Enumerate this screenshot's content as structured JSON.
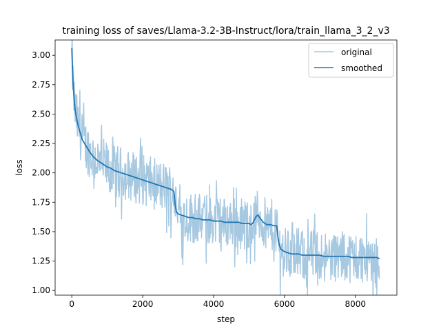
{
  "chart_data": {
    "type": "line",
    "title": "training loss of saves/Llama-3.2-3B-Instruct/lora/train_llama_3_2_v3",
    "xlabel": "step",
    "ylabel": "loss",
    "xlim": [
      -470,
      9170
    ],
    "ylim": [
      0.96,
      3.13
    ],
    "xticks": [
      0,
      2000,
      4000,
      6000,
      8000
    ],
    "xtick_labels": [
      "0",
      "2000",
      "4000",
      "6000",
      "8000"
    ],
    "yticks": [
      1.0,
      1.25,
      1.5,
      1.75,
      2.0,
      2.25,
      2.5,
      2.75,
      3.0
    ],
    "ytick_labels": [
      "1.00",
      "1.25",
      "1.50",
      "1.75",
      "2.00",
      "2.25",
      "2.50",
      "2.75",
      "3.00"
    ],
    "grid": false,
    "legend_position": "top-right",
    "smoothed_x": [
      0,
      20,
      40,
      60,
      80,
      100,
      150,
      200,
      250,
      300,
      400,
      500,
      600,
      700,
      800,
      900,
      1000,
      1100,
      1200,
      1300,
      1400,
      1500,
      1600,
      1700,
      1800,
      1900,
      2000,
      2100,
      2200,
      2300,
      2400,
      2500,
      2600,
      2700,
      2800,
      2850,
      2880,
      2900,
      2920,
      2950,
      3000,
      3100,
      3200,
      3300,
      3400,
      3500,
      3600,
      3700,
      3800,
      3900,
      4000,
      4100,
      4200,
      4300,
      4400,
      4500,
      4600,
      4700,
      4800,
      4900,
      5000,
      5050,
      5100,
      5150,
      5200,
      5250,
      5300,
      5400,
      5500,
      5600,
      5700,
      5750,
      5780,
      5800,
      5820,
      5850,
      5900,
      6000,
      6100,
      6200,
      6300,
      6400,
      6500,
      6600,
      6700,
      6800,
      6900,
      7000,
      7100,
      7200,
      7300,
      7400,
      7500,
      7600,
      7700,
      7800,
      7900,
      8000,
      8100,
      8200,
      8300,
      8400,
      8500,
      8600,
      8680
    ],
    "series": [
      {
        "name": "original",
        "color": "#a6c8e0",
        "noise_amplitude": 0.22,
        "sample_step": 12
      },
      {
        "name": "smoothed",
        "color": "#1f77b4",
        "values": [
          3.06,
          2.88,
          2.74,
          2.65,
          2.58,
          2.52,
          2.44,
          2.38,
          2.33,
          2.28,
          2.23,
          2.18,
          2.14,
          2.11,
          2.09,
          2.07,
          2.05,
          2.04,
          2.02,
          2.01,
          2.0,
          1.99,
          1.98,
          1.97,
          1.96,
          1.95,
          1.94,
          1.93,
          1.92,
          1.91,
          1.9,
          1.89,
          1.88,
          1.87,
          1.86,
          1.85,
          1.84,
          1.78,
          1.72,
          1.67,
          1.65,
          1.64,
          1.63,
          1.62,
          1.62,
          1.61,
          1.61,
          1.6,
          1.6,
          1.6,
          1.59,
          1.59,
          1.59,
          1.58,
          1.58,
          1.58,
          1.58,
          1.58,
          1.57,
          1.57,
          1.57,
          1.56,
          1.57,
          1.6,
          1.63,
          1.64,
          1.62,
          1.58,
          1.56,
          1.56,
          1.55,
          1.55,
          1.55,
          1.5,
          1.44,
          1.39,
          1.35,
          1.33,
          1.32,
          1.31,
          1.31,
          1.31,
          1.3,
          1.3,
          1.3,
          1.3,
          1.3,
          1.3,
          1.29,
          1.29,
          1.29,
          1.29,
          1.29,
          1.29,
          1.29,
          1.29,
          1.28,
          1.28,
          1.28,
          1.28,
          1.28,
          1.28,
          1.28,
          1.28,
          1.27
        ]
      }
    ]
  }
}
